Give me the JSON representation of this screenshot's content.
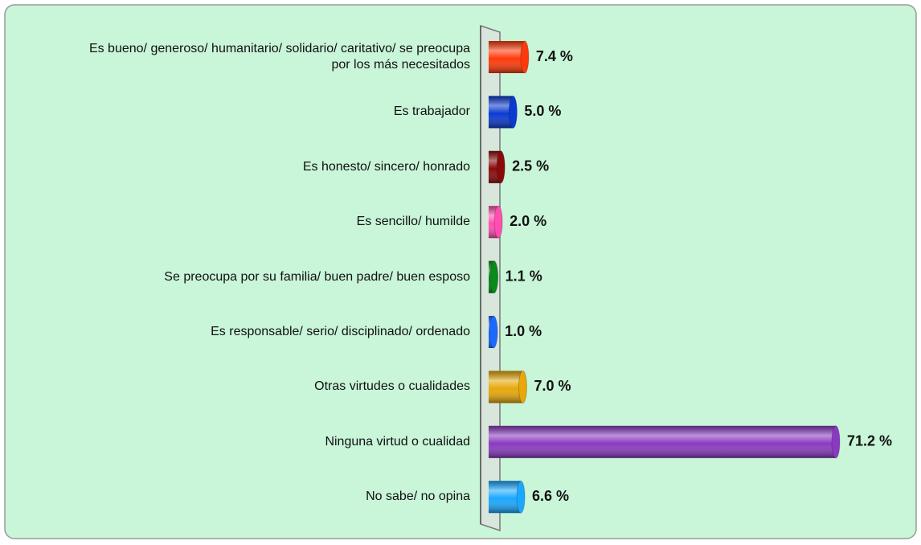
{
  "chart_data": {
    "type": "bar",
    "orientation": "horizontal",
    "categories": [
      "Es bueno/ generoso/ humanitario/ solidario/ caritativo/ se preocupa por los más necesitados",
      "Es trabajador",
      "Es honesto/ sincero/ honrado",
      "Es sencillo/ humilde",
      "Se preocupa por su familia/ buen padre/ buen esposo",
      "Es responsable/ serio/ disciplinado/ ordenado",
      "Otras virtudes o cualidades",
      "Ninguna virtud o cualidad",
      "No sabe/ no opina"
    ],
    "values": [
      7.4,
      5.0,
      2.5,
      2.0,
      1.1,
      1.0,
      7.0,
      71.2,
      6.6
    ],
    "value_labels": [
      "7.4 %",
      "5.0 %",
      "2.5 %",
      "2.0 %",
      "1.1 %",
      "1.0 %",
      "7.0 %",
      "71.2 %",
      "6.6 %"
    ],
    "colors": [
      "#ff3a0a",
      "#0a3ad0",
      "#8a0a0a",
      "#ff4fb0",
      "#0a8a1a",
      "#1a6aff",
      "#e6a80a",
      "#8a3ac0",
      "#1aa8ff"
    ]
  }
}
